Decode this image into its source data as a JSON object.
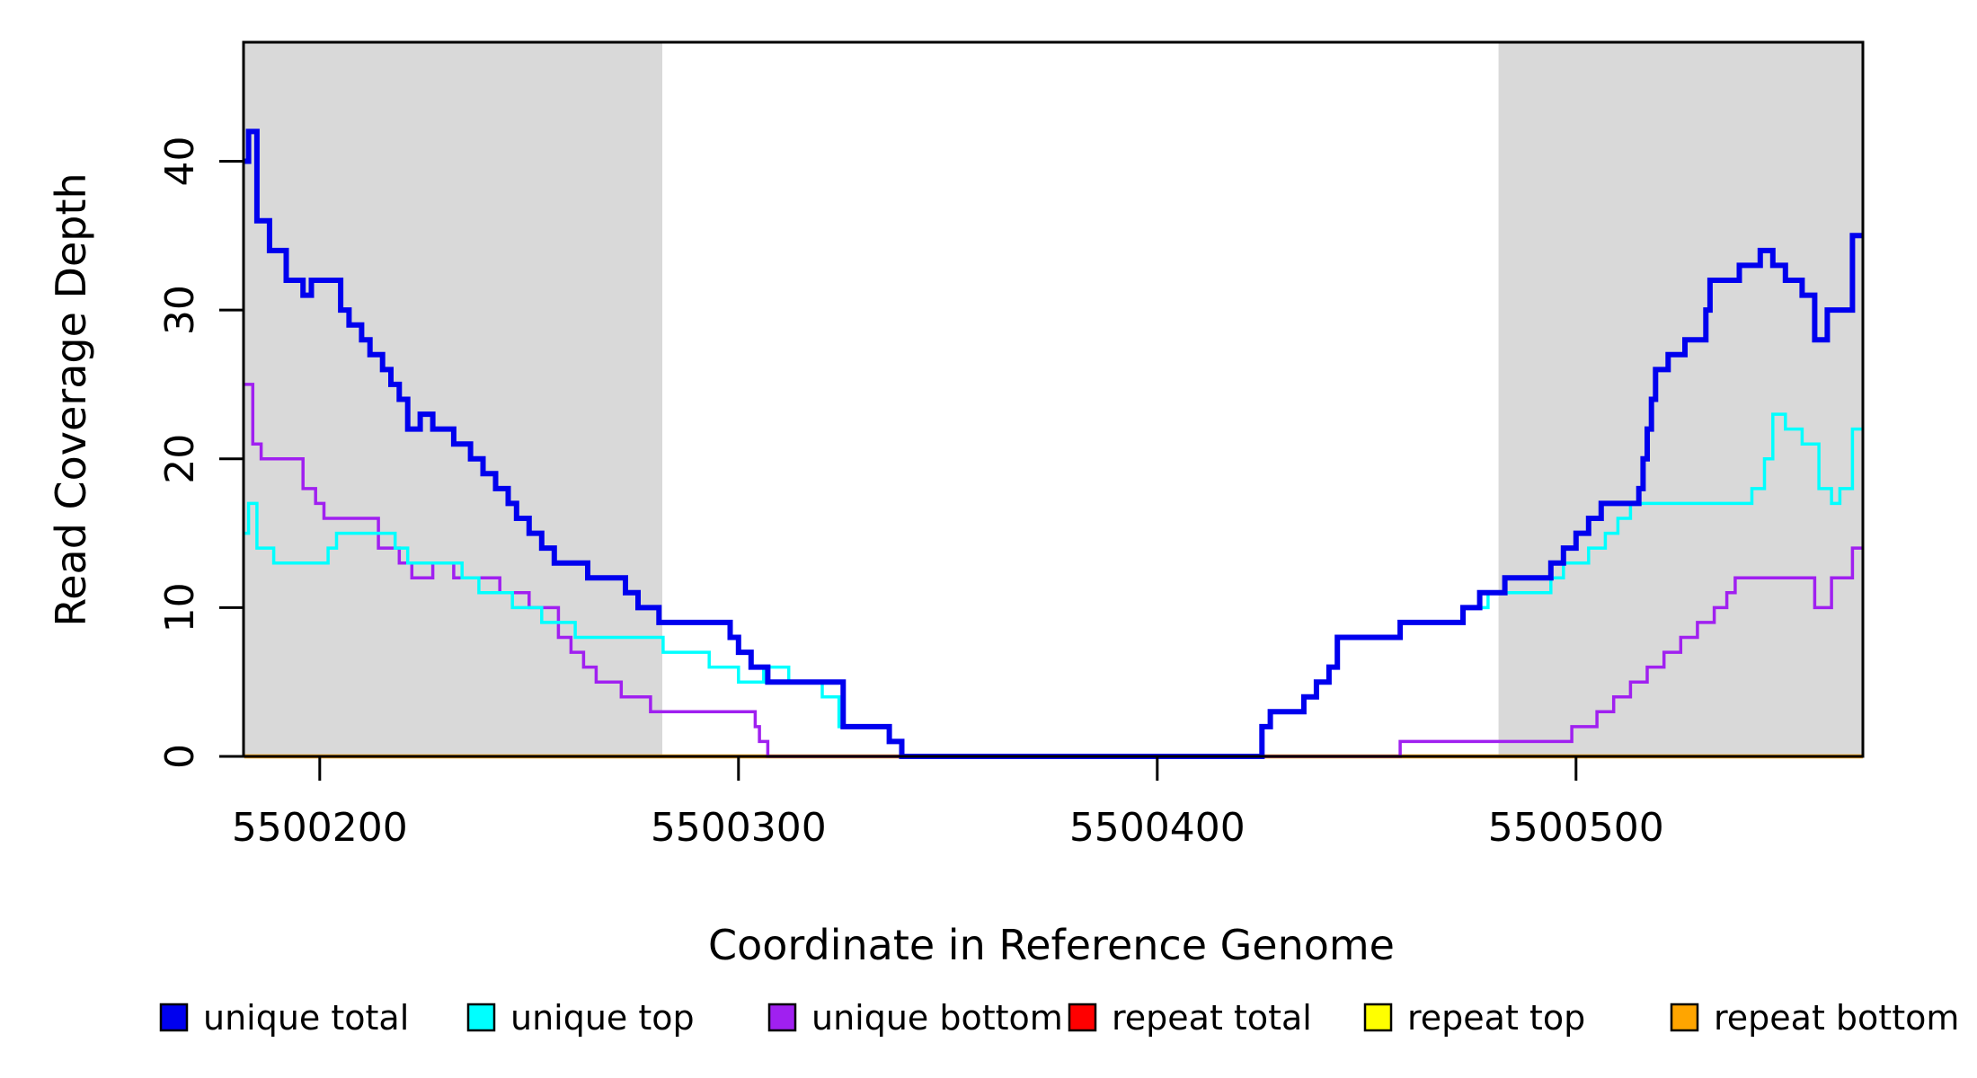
{
  "chart_data": {
    "type": "line",
    "subtype": "step",
    "title": "",
    "xlabel": "Coordinate in Reference Genome",
    "ylabel": "Read Coverage Depth",
    "xlim": [
      5500181.8,
      5500568.5
    ],
    "ylim": [
      0,
      48
    ],
    "x_ticks": [
      5500200,
      5500300,
      5500400,
      5500500
    ],
    "x_tick_labels": [
      "5500200",
      "5500300",
      "5500400",
      "5500500"
    ],
    "y_ticks": [
      0,
      10,
      20,
      30,
      40
    ],
    "y_tick_labels": [
      "0",
      "10",
      "20",
      "30",
      "40"
    ],
    "grid": false,
    "legend_position": "bottom",
    "axis_color": "#000000",
    "shaded_regions": [
      {
        "x0": 5500181.8,
        "x1": 5500281.8,
        "color": "#D9D9D9"
      },
      {
        "x0": 5500481.5,
        "x1": 5500568.5,
        "color": "#D9D9D9"
      }
    ],
    "series": [
      {
        "name": "repeat total",
        "color": "#FF0000",
        "width": 3.5,
        "points": [
          [
            5500182,
            0
          ]
        ]
      },
      {
        "name": "repeat top",
        "color": "#FFFF00",
        "width": 3.5,
        "points": [
          [
            5500182,
            0
          ]
        ]
      },
      {
        "name": "repeat bottom",
        "color": "#FFA500",
        "width": 4.5,
        "points": [
          [
            5500182,
            0
          ]
        ]
      },
      {
        "name": "unique bottom",
        "color": "#A020F0",
        "width": 3.5,
        "points": [
          [
            5500182,
            25
          ],
          [
            5500184,
            21
          ],
          [
            5500186,
            20
          ],
          [
            5500196,
            18
          ],
          [
            5500199,
            17
          ],
          [
            5500201,
            16
          ],
          [
            5500212,
            16
          ],
          [
            5500214,
            14
          ],
          [
            5500219,
            13
          ],
          [
            5500222,
            12
          ],
          [
            5500227,
            13
          ],
          [
            5500232,
            12
          ],
          [
            5500243,
            11
          ],
          [
            5500250,
            10
          ],
          [
            5500257,
            8
          ],
          [
            5500260,
            7
          ],
          [
            5500263,
            6
          ],
          [
            5500266,
            5
          ],
          [
            5500272,
            4
          ],
          [
            5500279,
            3
          ],
          [
            5500304,
            2
          ],
          [
            5500305,
            1
          ],
          [
            5500307,
            0
          ],
          [
            5500458,
            1
          ],
          [
            5500499,
            2
          ],
          [
            5500505,
            3
          ],
          [
            5500509,
            4
          ],
          [
            5500513,
            5
          ],
          [
            5500517,
            6
          ],
          [
            5500521,
            7
          ],
          [
            5500525,
            8
          ],
          [
            5500529,
            9
          ],
          [
            5500533,
            10
          ],
          [
            5500536,
            11
          ],
          [
            5500538,
            12
          ],
          [
            5500557,
            10
          ],
          [
            5500561,
            12
          ],
          [
            5500566,
            14
          ]
        ]
      },
      {
        "name": "unique top",
        "color": "#00FFFF",
        "width": 3.5,
        "points": [
          [
            5500182,
            15
          ],
          [
            5500183,
            17
          ],
          [
            5500185,
            14
          ],
          [
            5500189,
            13
          ],
          [
            5500202,
            14
          ],
          [
            5500204,
            15
          ],
          [
            5500216,
            15
          ],
          [
            5500218,
            14
          ],
          [
            5500221,
            13
          ],
          [
            5500234,
            12
          ],
          [
            5500238,
            11
          ],
          [
            5500246,
            10
          ],
          [
            5500253,
            9
          ],
          [
            5500261,
            8
          ],
          [
            5500282,
            7
          ],
          [
            5500293,
            6
          ],
          [
            5500300,
            5
          ],
          [
            5500306,
            6
          ],
          [
            5500312,
            5
          ],
          [
            5500320,
            4
          ],
          [
            5500324,
            2
          ],
          [
            5500336,
            1
          ],
          [
            5500339,
            0
          ],
          [
            5500425,
            2
          ],
          [
            5500427,
            3
          ],
          [
            5500435,
            4
          ],
          [
            5500438,
            5
          ],
          [
            5500441,
            6
          ],
          [
            5500443,
            8
          ],
          [
            5500458,
            9
          ],
          [
            5500473,
            10
          ],
          [
            5500479,
            11
          ],
          [
            5500494,
            12
          ],
          [
            5500497,
            13
          ],
          [
            5500503,
            14
          ],
          [
            5500507,
            15
          ],
          [
            5500510,
            16
          ],
          [
            5500513,
            17
          ],
          [
            5500542,
            18
          ],
          [
            5500545,
            20
          ],
          [
            5500547,
            23
          ],
          [
            5500550,
            22
          ],
          [
            5500554,
            21
          ],
          [
            5500558,
            18
          ],
          [
            5500561,
            17
          ],
          [
            5500563,
            18
          ],
          [
            5500566,
            22
          ]
        ]
      },
      {
        "name": "unique total",
        "color": "#0000EE",
        "width": 6,
        "points": [
          [
            5500182,
            40
          ],
          [
            5500183,
            42
          ],
          [
            5500185,
            36
          ],
          [
            5500188,
            34
          ],
          [
            5500192,
            32
          ],
          [
            5500196,
            31
          ],
          [
            5500198,
            32
          ],
          [
            5500205,
            30
          ],
          [
            5500207,
            29
          ],
          [
            5500210,
            28
          ],
          [
            5500212,
            27
          ],
          [
            5500215,
            26
          ],
          [
            5500217,
            25
          ],
          [
            5500219,
            24
          ],
          [
            5500221,
            22
          ],
          [
            5500224,
            23
          ],
          [
            5500227,
            22
          ],
          [
            5500232,
            21
          ],
          [
            5500236,
            20
          ],
          [
            5500239,
            19
          ],
          [
            5500242,
            18
          ],
          [
            5500245,
            17
          ],
          [
            5500247,
            16
          ],
          [
            5500250,
            15
          ],
          [
            5500253,
            14
          ],
          [
            5500256,
            13
          ],
          [
            5500264,
            12
          ],
          [
            5500273,
            11
          ],
          [
            5500276,
            10
          ],
          [
            5500281,
            9
          ],
          [
            5500298,
            8
          ],
          [
            5500300,
            7
          ],
          [
            5500303,
            6
          ],
          [
            5500307,
            5
          ],
          [
            5500325,
            2
          ],
          [
            5500336,
            1
          ],
          [
            5500339,
            0
          ],
          [
            5500425,
            2
          ],
          [
            5500427,
            3
          ],
          [
            5500435,
            4
          ],
          [
            5500438,
            5
          ],
          [
            5500441,
            6
          ],
          [
            5500443,
            8
          ],
          [
            5500458,
            9
          ],
          [
            5500473,
            10
          ],
          [
            5500477,
            11
          ],
          [
            5500483,
            12
          ],
          [
            5500494,
            13
          ],
          [
            5500497,
            14
          ],
          [
            5500500,
            15
          ],
          [
            5500503,
            16
          ],
          [
            5500506,
            17
          ],
          [
            5500515,
            18
          ],
          [
            5500516,
            20
          ],
          [
            5500517,
            22
          ],
          [
            5500518,
            24
          ],
          [
            5500519,
            26
          ],
          [
            5500522,
            27
          ],
          [
            5500526,
            28
          ],
          [
            5500531,
            30
          ],
          [
            5500532,
            32
          ],
          [
            5500539,
            33
          ],
          [
            5500544,
            34
          ],
          [
            5500547,
            33
          ],
          [
            5500550,
            32
          ],
          [
            5500554,
            31
          ],
          [
            5500557,
            28
          ],
          [
            5500560,
            30
          ],
          [
            5500566,
            35
          ]
        ]
      }
    ]
  },
  "legend": {
    "items": [
      {
        "label": "unique total",
        "color": "#0000EE"
      },
      {
        "label": "unique top",
        "color": "#00FFFF"
      },
      {
        "label": "unique bottom",
        "color": "#A020F0"
      },
      {
        "label": "repeat total",
        "color": "#FF0000"
      },
      {
        "label": "repeat top",
        "color": "#FFFF00"
      },
      {
        "label": "repeat bottom",
        "color": "#FFA500"
      }
    ]
  }
}
